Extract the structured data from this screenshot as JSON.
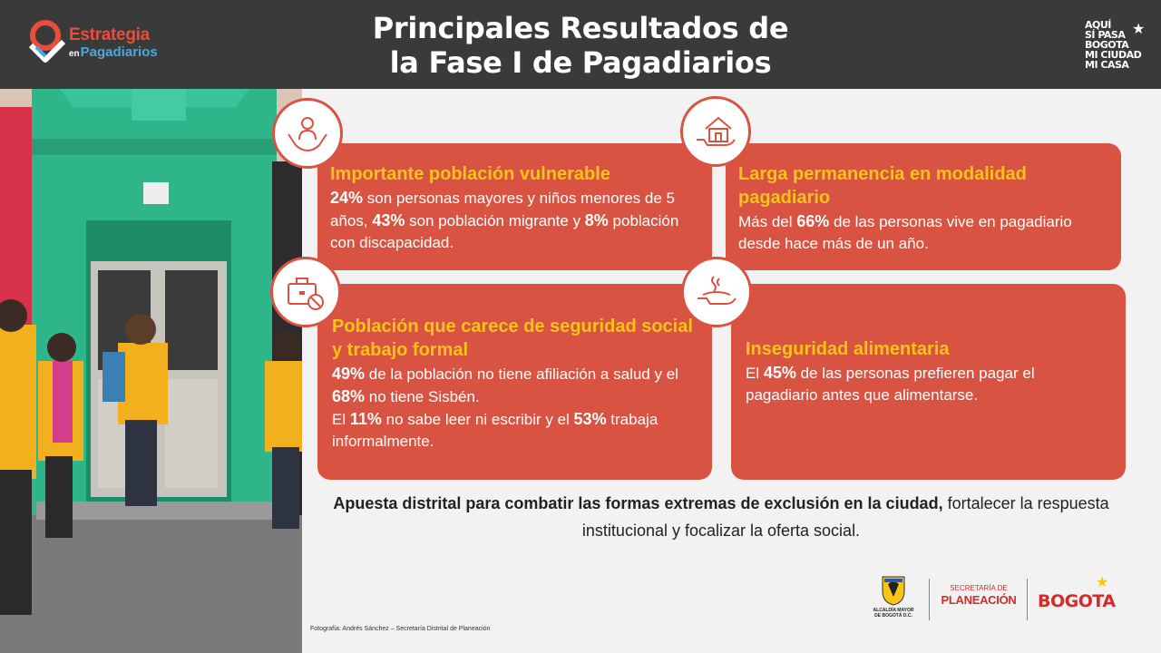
{
  "header": {
    "title_line1": "Principales Resultados de",
    "title_line2": "la Fase I de Pagadiarios",
    "logo_left": {
      "word1": "Estrategia",
      "word2_small": "en",
      "word2": "Pagadiarios"
    },
    "logo_right": [
      "AQUÍ",
      "SÍ PASA",
      "BOGOTA",
      "MI CIUDAD",
      "MI CASA"
    ]
  },
  "cards": [
    {
      "title": "Importante población vulnerable",
      "icon": "caring-hands-person-icon",
      "text": [
        {
          "b": "24%",
          "t": " son personas mayores y niños menores de 5 años, "
        },
        {
          "b": "43%",
          "t": " son población migrante y "
        },
        {
          "b": "8%",
          "t": " población con discapacidad."
        }
      ]
    },
    {
      "title": "Larga permanencia en modalidad pagadiario",
      "icon": "hand-house-icon",
      "text": [
        {
          "b": "",
          "t": "Más del "
        },
        {
          "b": "66%",
          "t": " de las personas vive en pagadiario desde hace más de un año."
        }
      ]
    },
    {
      "title": "Población que carece de seguridad social y trabajo formal",
      "icon": "briefcase-forbidden-icon",
      "text1": [
        {
          "b": "49%",
          "t": " de la población no tiene afiliación a salud y el "
        },
        {
          "b": "68%",
          "t": " no tiene Sisbén."
        }
      ],
      "text2": [
        {
          "b": "",
          "t": "El "
        },
        {
          "b": "11%",
          "t": " no sabe leer ni escribir y el "
        },
        {
          "b": "53%",
          "t": " trabaja informalmente."
        }
      ]
    },
    {
      "title": "Inseguridad alimentaria",
      "icon": "hand-food-plate-icon",
      "text": [
        {
          "b": "",
          "t": "El "
        },
        {
          "b": "45%",
          "t": " de las personas prefieren pagar el pagadiario antes que alimentarse."
        }
      ]
    }
  ],
  "bottom": {
    "bold": "Apuesta distrital para combatir las formas extremas de exclusión en la ciudad,",
    "rest": " fortalecer la respuesta institucional y focalizar la oferta social."
  },
  "photo_credit": "Fotografía: Andrés Sánchez – Secretaría Distrital de Planeación",
  "footer": {
    "alcaldia": [
      "ALCALDÍA MAYOR",
      "DE BOGOTÁ D.C."
    ],
    "secretaria_top": "SECRETARÍA DE",
    "secretaria_main": "PLANEACIÓN",
    "bogota": "BOGOTA"
  },
  "colors": {
    "card": "#d95342",
    "card_title": "#f9c318",
    "header": "#3a3a3a",
    "accent_red": "#d62b2b"
  }
}
